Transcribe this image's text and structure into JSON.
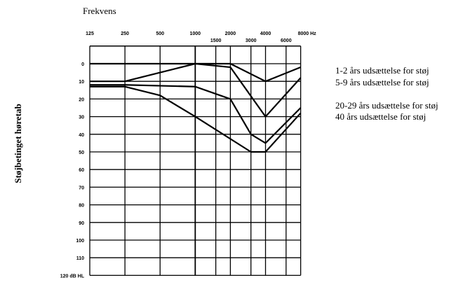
{
  "chart_data": {
    "type": "line",
    "title": "Frekvens",
    "xlabel": "Frekvens",
    "ylabel": "Støjbetinget høretab",
    "x_scale": "log",
    "x_unit": "Hz",
    "y_unit": "dB HL",
    "y_inverted": true,
    "ylim": [
      -10,
      120
    ],
    "grid": true,
    "legend_placement": "right",
    "x_ticks_top": [
      "125",
      "250",
      "500",
      "1000",
      "2000",
      "4000",
      "8000 Hz"
    ],
    "x_ticks_bottom": [
      "1500",
      "3000",
      "6000"
    ],
    "x_grid": [
      125,
      250,
      500,
      1000,
      1500,
      2000,
      3000,
      4000,
      6000,
      8000
    ],
    "y_ticks": [
      "0",
      "10",
      "20",
      "30",
      "40",
      "50",
      "60",
      "70",
      "80",
      "90",
      "100",
      "110",
      "120 dB HL"
    ],
    "y_grid": [
      0,
      10,
      20,
      30,
      40,
      50,
      60,
      70,
      80,
      90,
      100,
      110,
      120
    ],
    "series": [
      {
        "name": "1-2 års udsættelse for støj",
        "x": [
          125,
          250,
          500,
          1000,
          2000,
          4000,
          8000
        ],
        "values": [
          0,
          0,
          0,
          0,
          0,
          10,
          2
        ]
      },
      {
        "name": "5-9 års udsættelse for støj",
        "x": [
          125,
          250,
          1000,
          2000,
          4000,
          8000
        ],
        "values": [
          10,
          10,
          0,
          2,
          30,
          8
        ]
      },
      {
        "name": "20-29 års udsættelse for støj",
        "x": [
          125,
          250,
          1000,
          2000,
          3000,
          4000,
          8000
        ],
        "values": [
          12,
          12,
          13,
          20,
          40,
          45,
          25
        ]
      },
      {
        "name": "40 års udsættelse for støj",
        "x": [
          125,
          250,
          500,
          1000,
          3000,
          4000,
          8000
        ],
        "values": [
          13,
          13,
          18,
          30,
          50,
          50,
          28
        ]
      }
    ],
    "line_color": "#000000"
  }
}
